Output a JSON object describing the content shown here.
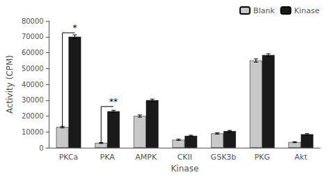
{
  "chart_data": {
    "type": "bar",
    "xlabel": "Kinase",
    "ylabel": "Activity (CPM)",
    "categories": [
      "PKCa",
      "PKA",
      "AMPK",
      "CKII",
      "GSK3b",
      "PKG",
      "Akt"
    ],
    "series": [
      {
        "name": "Blank",
        "color": "#c8c8c8",
        "values": [
          13000,
          3000,
          20000,
          5000,
          9000,
          55000,
          3500
        ],
        "errors": [
          500,
          300,
          700,
          400,
          400,
          1000,
          300
        ]
      },
      {
        "name": "Kinase",
        "color": "#1a1a1a",
        "values": [
          70000,
          23000,
          30000,
          7500,
          10500,
          58500,
          8500
        ],
        "errors": [
          1200,
          600,
          700,
          400,
          400,
          800,
          400
        ]
      }
    ],
    "ylim": [
      0,
      80000
    ],
    "yticks": [
      0,
      10000,
      20000,
      30000,
      40000,
      50000,
      60000,
      70000,
      80000
    ],
    "grid": false,
    "legend": "upper right",
    "annotations": [
      {
        "text": "*",
        "category": "PKCa",
        "y": 72500
      },
      {
        "text": "**",
        "category": "PKA",
        "y": 26000
      }
    ]
  }
}
